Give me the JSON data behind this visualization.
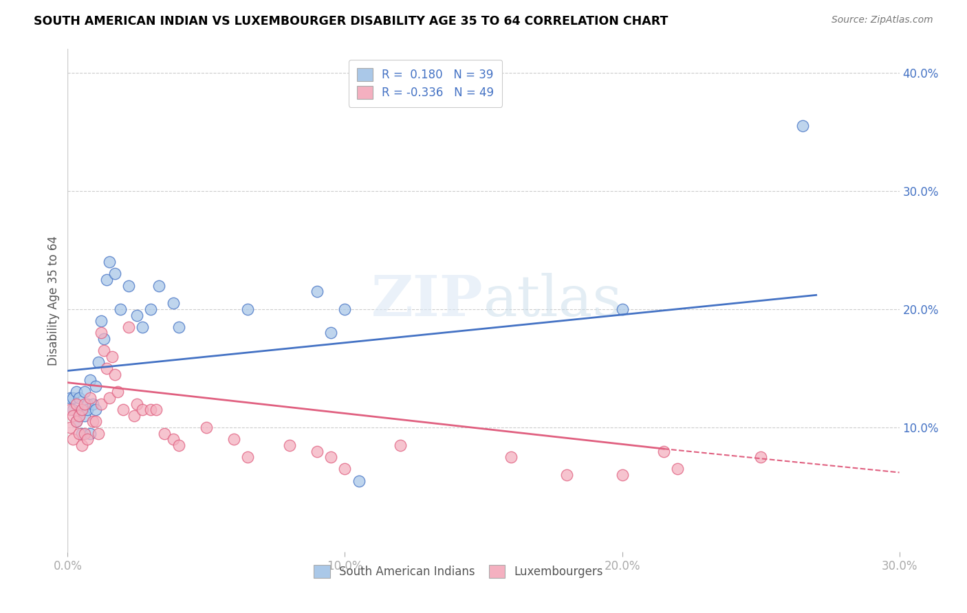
{
  "title": "SOUTH AMERICAN INDIAN VS LUXEMBOURGER DISABILITY AGE 35 TO 64 CORRELATION CHART",
  "source": "Source: ZipAtlas.com",
  "ylabel": "Disability Age 35 to 64",
  "color_blue": "#aac8e8",
  "color_pink": "#f4b0c0",
  "line_blue": "#4472c4",
  "line_pink": "#e06080",
  "xlim": [
    0.0,
    0.3
  ],
  "ylim": [
    -0.005,
    0.42
  ],
  "xticks": [
    0.0,
    0.1,
    0.2,
    0.3
  ],
  "xtick_labels": [
    "0.0%",
    "10.0%",
    "20.0%",
    "30.0%"
  ],
  "yticks_right": [
    0.1,
    0.2,
    0.3,
    0.4
  ],
  "ytick_right_labels": [
    "10.0%",
    "20.0%",
    "30.0%",
    "40.0%"
  ],
  "blue_x": [
    0.001,
    0.002,
    0.002,
    0.003,
    0.003,
    0.004,
    0.004,
    0.005,
    0.005,
    0.006,
    0.006,
    0.007,
    0.007,
    0.008,
    0.008,
    0.009,
    0.01,
    0.01,
    0.011,
    0.012,
    0.013,
    0.014,
    0.015,
    0.017,
    0.019,
    0.022,
    0.025,
    0.027,
    0.03,
    0.033,
    0.038,
    0.04,
    0.065,
    0.09,
    0.095,
    0.1,
    0.105,
    0.2,
    0.265
  ],
  "blue_y": [
    0.125,
    0.115,
    0.125,
    0.13,
    0.105,
    0.11,
    0.125,
    0.115,
    0.095,
    0.13,
    0.11,
    0.12,
    0.115,
    0.14,
    0.095,
    0.12,
    0.135,
    0.115,
    0.155,
    0.19,
    0.175,
    0.225,
    0.24,
    0.23,
    0.2,
    0.22,
    0.195,
    0.185,
    0.2,
    0.22,
    0.205,
    0.185,
    0.2,
    0.215,
    0.18,
    0.2,
    0.055,
    0.2,
    0.355
  ],
  "pink_x": [
    0.001,
    0.001,
    0.002,
    0.002,
    0.003,
    0.003,
    0.004,
    0.004,
    0.005,
    0.005,
    0.006,
    0.006,
    0.007,
    0.008,
    0.009,
    0.01,
    0.011,
    0.012,
    0.012,
    0.013,
    0.014,
    0.015,
    0.016,
    0.017,
    0.018,
    0.02,
    0.022,
    0.024,
    0.025,
    0.027,
    0.03,
    0.032,
    0.035,
    0.038,
    0.04,
    0.05,
    0.06,
    0.065,
    0.08,
    0.09,
    0.095,
    0.1,
    0.12,
    0.16,
    0.18,
    0.2,
    0.215,
    0.22,
    0.25
  ],
  "pink_y": [
    0.1,
    0.115,
    0.09,
    0.11,
    0.105,
    0.12,
    0.11,
    0.095,
    0.115,
    0.085,
    0.12,
    0.095,
    0.09,
    0.125,
    0.105,
    0.105,
    0.095,
    0.18,
    0.12,
    0.165,
    0.15,
    0.125,
    0.16,
    0.145,
    0.13,
    0.115,
    0.185,
    0.11,
    0.12,
    0.115,
    0.115,
    0.115,
    0.095,
    0.09,
    0.085,
    0.1,
    0.09,
    0.075,
    0.085,
    0.08,
    0.075,
    0.065,
    0.085,
    0.075,
    0.06,
    0.06,
    0.08,
    0.065,
    0.075
  ],
  "blue_line_x0": 0.0,
  "blue_line_x1": 0.27,
  "blue_line_y0": 0.148,
  "blue_line_y1": 0.212,
  "pink_line_x0": 0.0,
  "pink_line_x1": 0.215,
  "pink_line_x1_dash": 0.3,
  "pink_line_y0": 0.138,
  "pink_line_y1": 0.082,
  "pink_line_y1_dash": 0.062
}
